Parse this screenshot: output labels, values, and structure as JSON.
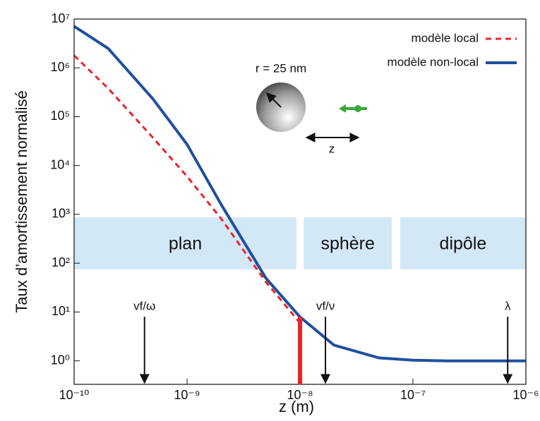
{
  "chart_data": {
    "type": "line",
    "xlabel": "z (m)",
    "ylabel": "Taux d’amortissement normalisé",
    "log_x": true,
    "log_y": true,
    "legend": "upper right",
    "xlim": [
      1e-10,
      1e-06
    ],
    "xticks": [
      {
        "value": 1e-10,
        "label": "10⁻¹⁰"
      },
      {
        "value": 1e-09,
        "label": "10⁻⁹"
      },
      {
        "value": 1e-08,
        "label": "10⁻⁸"
      },
      {
        "value": 1e-07,
        "label": "10⁻⁷"
      },
      {
        "value": 1e-06,
        "label": "10⁻⁶"
      }
    ],
    "ylim": [
      0.33,
      10000000
    ],
    "yticks": [
      {
        "value": 1,
        "label": "10⁰"
      },
      {
        "value": 10,
        "label": "10¹"
      },
      {
        "value": 100,
        "label": "10²"
      },
      {
        "value": 1000,
        "label": "10³"
      },
      {
        "value": 10000,
        "label": "10⁴"
      },
      {
        "value": 100000,
        "label": "10⁵"
      },
      {
        "value": 1000000,
        "label": "10⁶"
      },
      {
        "value": 10000000,
        "label": "10⁷"
      }
    ],
    "x": [
      1e-10,
      2e-10,
      5e-10,
      1e-09,
      2e-09,
      5e-09,
      1e-08,
      2e-08,
      5e-08,
      1e-07,
      2e-07,
      5e-07,
      1e-06
    ],
    "series": [
      {
        "name": "modèle local",
        "color": "#e8242a",
        "dashed": true,
        "values": [
          1800000,
          380000,
          37000,
          6000,
          820,
          41,
          6,
          null,
          null,
          null,
          null,
          null,
          null
        ]
      },
      {
        "name": "modèle non-local",
        "color": "#1f4f9f",
        "dashed": false,
        "values": [
          7100000,
          2500000,
          230000,
          27000,
          1600,
          49,
          7.9,
          2.1,
          1.15,
          1.03,
          1.0,
          1.0,
          1.0
        ]
      }
    ],
    "regions": [
      {
        "label": "plan",
        "x": [
          1e-10,
          9.3e-09
        ]
      },
      {
        "label": "sphère",
        "x": [
          1.08e-08,
          6.5e-08
        ]
      },
      {
        "label": "dipôle",
        "x": [
          7.7e-08,
          1e-06
        ]
      }
    ],
    "region_y": [
      75,
      870
    ],
    "region_color": "#d3e8f6",
    "cutoff": {
      "x": 1e-08,
      "y": [
        0.33,
        8
      ],
      "color": "#e8242a"
    },
    "annotations": [
      {
        "label": "vf/ω",
        "x": 4.2e-10
      },
      {
        "label": "vf/ν",
        "x": 1.68e-08
      },
      {
        "label": "λ",
        "x": 6.9e-07
      }
    ],
    "annotation_top": 8,
    "inset": {
      "radius_label": "r = 25 nm",
      "axis_label": "z"
    }
  }
}
